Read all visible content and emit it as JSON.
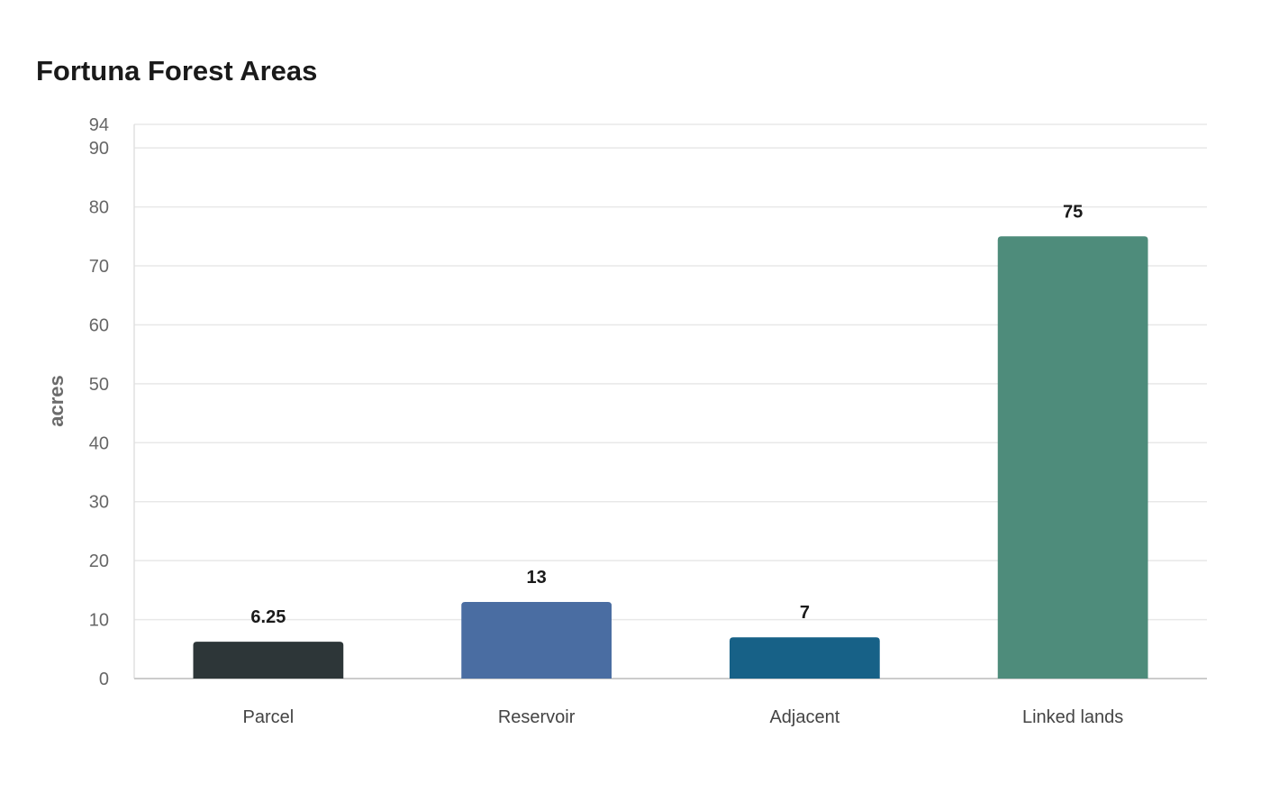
{
  "chart_data": {
    "type": "bar",
    "title": "Fortuna Forest Areas",
    "xlabel": "",
    "ylabel": "acres",
    "categories": [
      "Parcel",
      "Reservoir",
      "Adjacent",
      "Linked lands"
    ],
    "values": [
      6.25,
      13,
      7,
      75
    ],
    "data_labels": [
      "6.25",
      "13",
      "7",
      "75"
    ],
    "colors": [
      "#2d3638",
      "#4a6da2",
      "#176187",
      "#4e8c7b"
    ],
    "ylim": [
      0,
      94
    ],
    "yticks": [
      0,
      10,
      20,
      30,
      40,
      50,
      60,
      70,
      80,
      90,
      94
    ],
    "grid": true,
    "legend": "none"
  }
}
